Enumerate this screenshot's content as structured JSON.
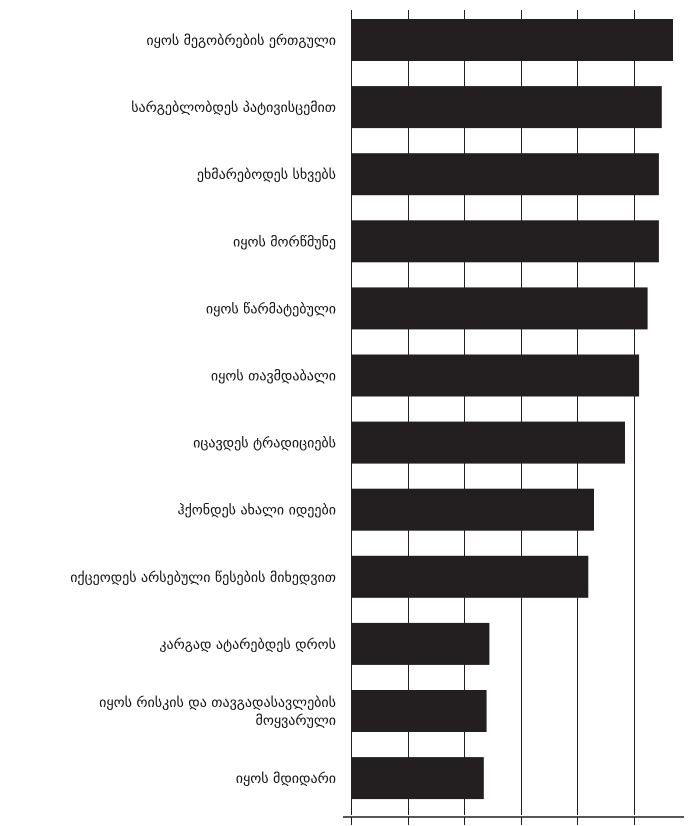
{
  "chart_data": {
    "type": "bar",
    "orientation": "horizontal",
    "categories": [
      "იყოს მეგობრების ერთგული",
      "სარგებლობდეს პატივისცემით",
      "ეხმარებოდეს სხვებს",
      "იყოს მორწმუნე",
      "იყოს წარმატებული",
      "იყოს თავმდაბალი",
      "იცავდეს ტრადიციებს",
      "ჰქონდეს ახალი იდეები",
      "იქცეოდეს არსებული წესების მიხედვით",
      "კარგად ატარებდეს დროს",
      "იყოს რისკის და თავგადასავლების მოყვარული",
      "იყოს მდიდარი"
    ],
    "values": [
      5.7,
      5.5,
      5.45,
      5.45,
      5.25,
      5.1,
      4.85,
      4.3,
      4.2,
      2.45,
      2.4,
      2.35
    ],
    "xlim": [
      0,
      6
    ],
    "x_tick_values": [
      0,
      1,
      2,
      3,
      4,
      5,
      6
    ],
    "x_tick_labels_shown": false,
    "grid": "vertical",
    "legend": "none",
    "bar_color": "#231f20",
    "grid_color": "#231f20",
    "title": "",
    "xlabel": "",
    "ylabel": ""
  }
}
